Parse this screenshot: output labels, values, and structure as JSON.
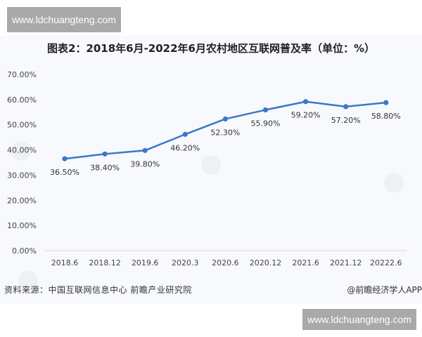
{
  "watermarks": {
    "top": "www.ldchuangteng.com",
    "bottom": "www.ldchuangteng.com"
  },
  "footer": {
    "source": "资料来源：中国互联网信息中心 前瞻产业研究院",
    "credit": "@前瞻经济学人APP"
  },
  "chart_data": {
    "type": "line",
    "title": "图表2：2018年6月-2022年6月农村地区互联网普及率（单位：%）",
    "xlabel": "",
    "ylabel": "",
    "categories": [
      "2018.6",
      "2018.12",
      "2019.6",
      "2020.3",
      "2020.6",
      "2020.12",
      "2021.6",
      "2021.12",
      "20222.6"
    ],
    "series": [
      {
        "name": "农村地区互联网普及率",
        "values": [
          36.5,
          38.4,
          39.8,
          46.2,
          52.3,
          55.9,
          59.2,
          57.2,
          58.8
        ],
        "labels": [
          "36.50%",
          "38.40%",
          "39.80%",
          "46.20%",
          "52.30%",
          "55.90%",
          "59.20%",
          "57.20%",
          "58.80%"
        ],
        "color": "#3a78c9"
      }
    ],
    "ylim": [
      0,
      70
    ],
    "yticks": [
      "0.00%",
      "10.00%",
      "20.00%",
      "30.00%",
      "40.00%",
      "50.00%",
      "60.00%",
      "70.00%"
    ],
    "grid": false,
    "legend": "none"
  }
}
